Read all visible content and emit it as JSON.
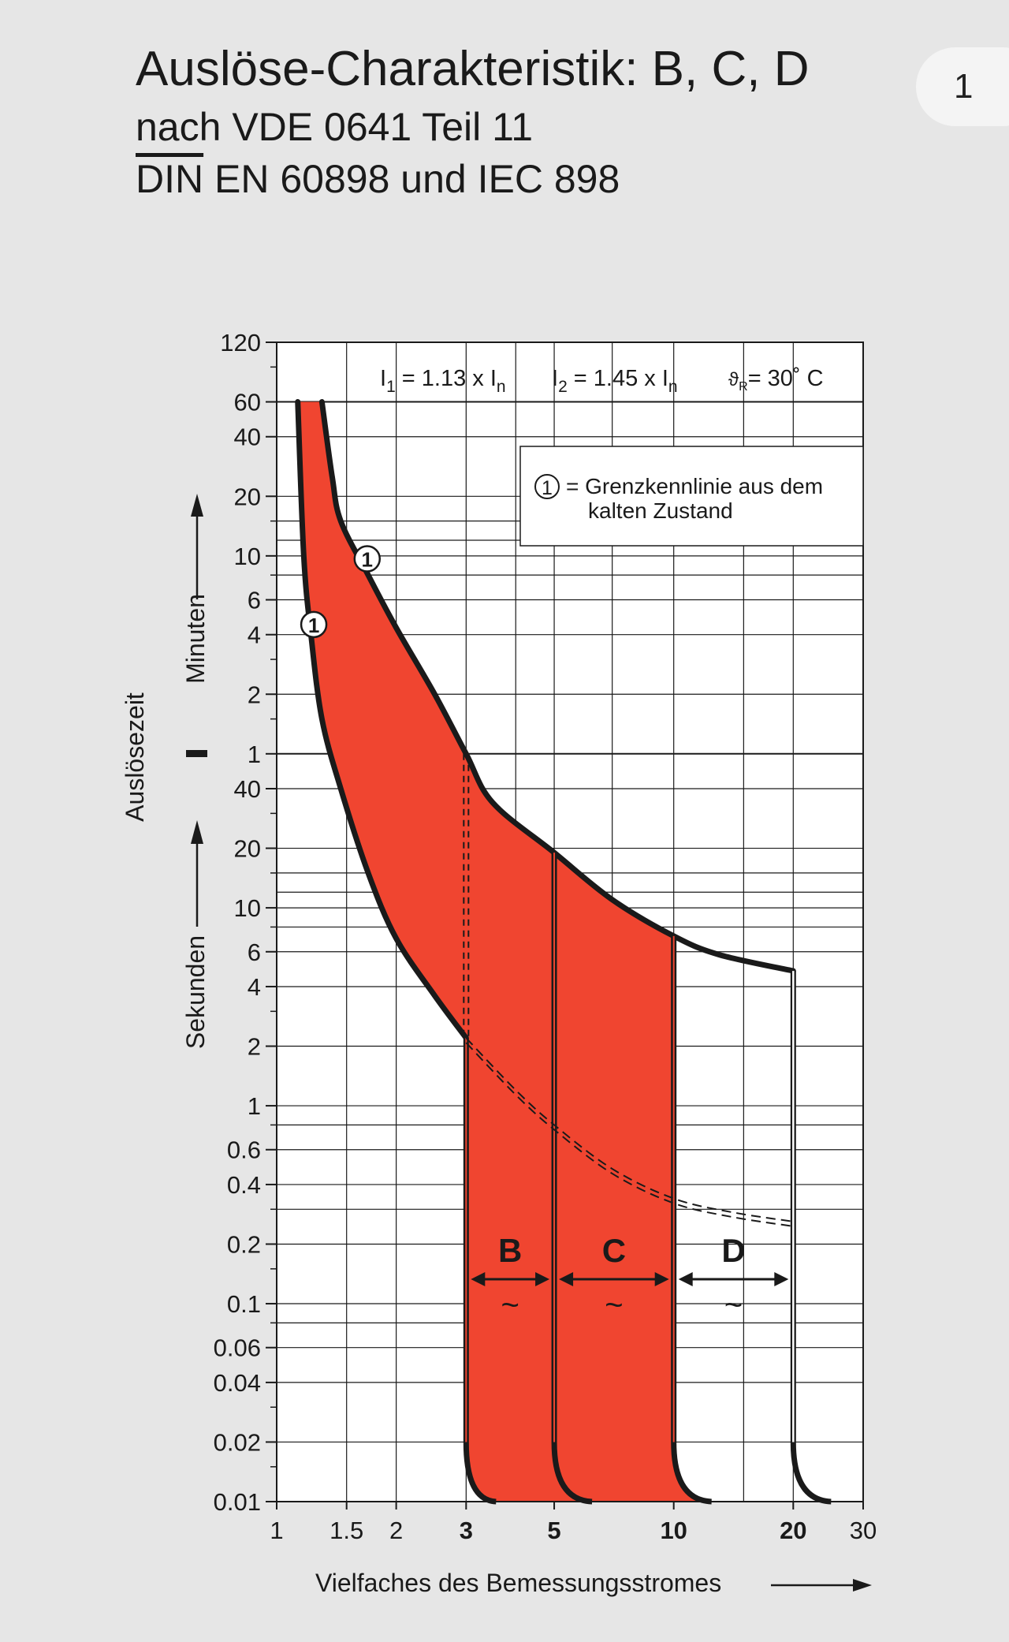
{
  "page_number": "1",
  "header": {
    "title": "Auslöse-Charakteristik: B, C, D",
    "subtitle1": "nach VDE 0641 Teil 11",
    "subtitle2_din": "DIN",
    "subtitle2_rest": " EN 60898 und IEC 898"
  },
  "chart_data": {
    "type": "area",
    "scale": {
      "x": "log",
      "y": "log"
    },
    "xlabel": "Vielfaches des Bemessungsstromes",
    "ylabel": "Auslösezeit",
    "ylabel_minutes": "Minuten",
    "ylabel_seconds": "Sekunden",
    "xlim": [
      1,
      30
    ],
    "ylim_seconds": [
      0.01,
      7200
    ],
    "x_ticks": [
      {
        "v": 1,
        "label": "1",
        "bold": false
      },
      {
        "v": 1.5,
        "label": "1.5",
        "bold": false
      },
      {
        "v": 2,
        "label": "2",
        "bold": false
      },
      {
        "v": 3,
        "label": "3",
        "bold": true
      },
      {
        "v": 5,
        "label": "5",
        "bold": true
      },
      {
        "v": 10,
        "label": "10",
        "bold": true
      },
      {
        "v": 20,
        "label": "20",
        "bold": true
      },
      {
        "v": 30,
        "label": "30",
        "bold": false
      }
    ],
    "y_ticks_minutes": [
      {
        "v": 120,
        "label": "120"
      },
      {
        "v": 60,
        "label": "60"
      },
      {
        "v": 40,
        "label": "40"
      },
      {
        "v": 20,
        "label": "20"
      },
      {
        "v": 10,
        "label": "10"
      },
      {
        "v": 6,
        "label": "6"
      },
      {
        "v": 4,
        "label": "4"
      },
      {
        "v": 2,
        "label": "2"
      },
      {
        "v": 1,
        "label": "1"
      }
    ],
    "y_ticks_seconds": [
      {
        "v": 40,
        "label": "40"
      },
      {
        "v": 20,
        "label": "20"
      },
      {
        "v": 10,
        "label": "10"
      },
      {
        "v": 6,
        "label": "6"
      },
      {
        "v": 4,
        "label": "4"
      },
      {
        "v": 2,
        "label": "2"
      },
      {
        "v": 1,
        "label": "1"
      },
      {
        "v": 0.6,
        "label": "0.6"
      },
      {
        "v": 0.4,
        "label": "0.4"
      },
      {
        "v": 0.2,
        "label": "0.2"
      },
      {
        "v": 0.1,
        "label": "0.1"
      },
      {
        "v": 0.06,
        "label": "0.06"
      },
      {
        "v": 0.04,
        "label": "0.04"
      },
      {
        "v": 0.02,
        "label": "0.02"
      },
      {
        "v": 0.01,
        "label": "0.01"
      }
    ],
    "annotations": {
      "i1_lhs": "I",
      "i1_sub": "1",
      "i1_mid": " = 1.13 x I",
      "i1_n": "n",
      "i2_lhs": "I",
      "i2_sub": "2",
      "i2_mid": " = 1.45 x I",
      "i2_n": "n",
      "theta": "ϑ",
      "theta_sub": "R",
      "theta_rest": "= 30˚ C",
      "legend_symbol": "1",
      "legend_line1": "= Grenzkennlinie aus dem",
      "legend_line2": "kalten Zustand",
      "tilde": "~"
    },
    "curves": {
      "lower_thermal": [
        [
          1.13,
          3600
        ],
        [
          1.17,
          600
        ],
        [
          1.22,
          240
        ],
        [
          1.3,
          90
        ],
        [
          1.45,
          40
        ],
        [
          1.7,
          15
        ],
        [
          2,
          7
        ],
        [
          2.5,
          3.6
        ],
        [
          3,
          2.2
        ]
      ],
      "upper_thermal": [
        [
          1.3,
          3600
        ],
        [
          1.38,
          1500
        ],
        [
          1.45,
          900
        ],
        [
          1.7,
          480
        ],
        [
          2,
          260
        ],
        [
          2.5,
          120
        ],
        [
          3,
          60
        ],
        [
          3.5,
          34
        ],
        [
          5,
          19
        ],
        [
          7,
          11
        ],
        [
          10,
          7.2
        ],
        [
          13,
          5.8
        ],
        [
          20,
          4.8
        ]
      ],
      "lower_dashed": [
        [
          3,
          2.2
        ],
        [
          4,
          1.2
        ],
        [
          5,
          0.8
        ],
        [
          7,
          0.48
        ],
        [
          10,
          0.34
        ],
        [
          14,
          0.29
        ],
        [
          20,
          0.26
        ]
      ]
    },
    "series": [
      {
        "name": "B",
        "i_min": 3,
        "i_max": 5,
        "filled": true
      },
      {
        "name": "C",
        "i_min": 5,
        "i_max": 10,
        "filled": true
      },
      {
        "name": "D",
        "i_min": 10,
        "i_max": 20,
        "filled": false
      }
    ],
    "colors": {
      "fill": "#f04530",
      "curve": "#1a1a1a",
      "plot_bg": "#ffffff",
      "page_bg": "#e6e6e6"
    }
  }
}
